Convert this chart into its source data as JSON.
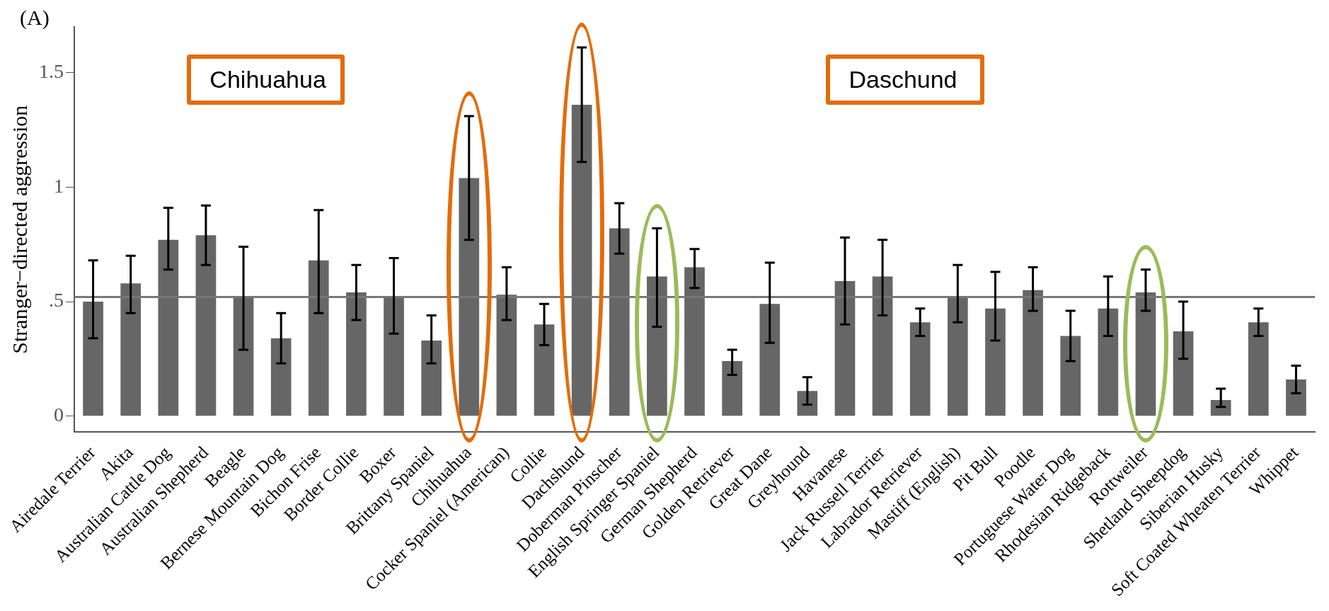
{
  "chart_data": {
    "type": "bar",
    "ylabel": "Stranger−directed aggression",
    "categories": [
      "Airedale Terrier",
      "Akita",
      "Australian Cattle Dog",
      "Australian Shepherd",
      "Beagle",
      "Bernese Mountain Dog",
      "Bichon Frise",
      "Border Collie",
      "Boxer",
      "Brittany Spaniel",
      "Chihuahua",
      "Cocker Spaniel (American)",
      "Collie",
      "Dachshund",
      "Doberman Pinscher",
      "English Springer Spaniel",
      "German Shepherd",
      "Golden Retriever",
      "Great Dane",
      "Greyhound",
      "Havanese",
      "Jack Russell Terrier",
      "Labrador Retriever",
      "Mastiff (English)",
      "Pit Bull",
      "Poodle",
      "Portuguese Water Dog",
      "Rhodesian Ridgeback",
      "Rottweiler",
      "Shetland Sheepdog",
      "Siberian Husky",
      "Soft Coated Wheaten Terrier",
      "Whippet"
    ],
    "values": [
      0.5,
      0.58,
      0.77,
      0.79,
      0.52,
      0.34,
      0.68,
      0.54,
      0.52,
      0.33,
      1.04,
      0.53,
      0.4,
      1.36,
      0.82,
      0.61,
      0.65,
      0.24,
      0.49,
      0.11,
      0.59,
      0.61,
      0.41,
      0.52,
      0.47,
      0.55,
      0.35,
      0.47,
      0.54,
      0.37,
      0.07,
      0.41,
      0.16
    ],
    "errors": [
      [
        0.34,
        0.68
      ],
      [
        0.45,
        0.7
      ],
      [
        0.64,
        0.91
      ],
      [
        0.66,
        0.92
      ],
      [
        0.29,
        0.74
      ],
      [
        0.23,
        0.45
      ],
      [
        0.45,
        0.9
      ],
      [
        0.42,
        0.66
      ],
      [
        0.36,
        0.69
      ],
      [
        0.23,
        0.44
      ],
      [
        0.77,
        1.31
      ],
      [
        0.42,
        0.65
      ],
      [
        0.31,
        0.49
      ],
      [
        1.11,
        1.61
      ],
      [
        0.71,
        0.93
      ],
      [
        0.39,
        0.82
      ],
      [
        0.56,
        0.73
      ],
      [
        0.18,
        0.29
      ],
      [
        0.32,
        0.67
      ],
      [
        0.05,
        0.17
      ],
      [
        0.4,
        0.78
      ],
      [
        0.44,
        0.77
      ],
      [
        0.35,
        0.47
      ],
      [
        0.41,
        0.66
      ],
      [
        0.33,
        0.63
      ],
      [
        0.46,
        0.65
      ],
      [
        0.24,
        0.46
      ],
      [
        0.35,
        0.61
      ],
      [
        0.46,
        0.64
      ],
      [
        0.25,
        0.5
      ],
      [
        0.04,
        0.12
      ],
      [
        0.35,
        0.47
      ],
      [
        0.1,
        0.22
      ]
    ],
    "color": "#666666",
    "ylim": [
      -0.07,
      1.7
    ],
    "yticks": [
      0,
      {
        "value": 0.5,
        "label": ".5"
      },
      1,
      {
        "value": 1.5,
        "label": "1.5"
      }
    ],
    "ref_lines": [
      {
        "axis": "y",
        "value": 0.52,
        "color": "#777777"
      }
    ],
    "grid": false,
    "legend": false,
    "annotations": [
      "(A)",
      "Chihuahua",
      "Daschund"
    ]
  }
}
